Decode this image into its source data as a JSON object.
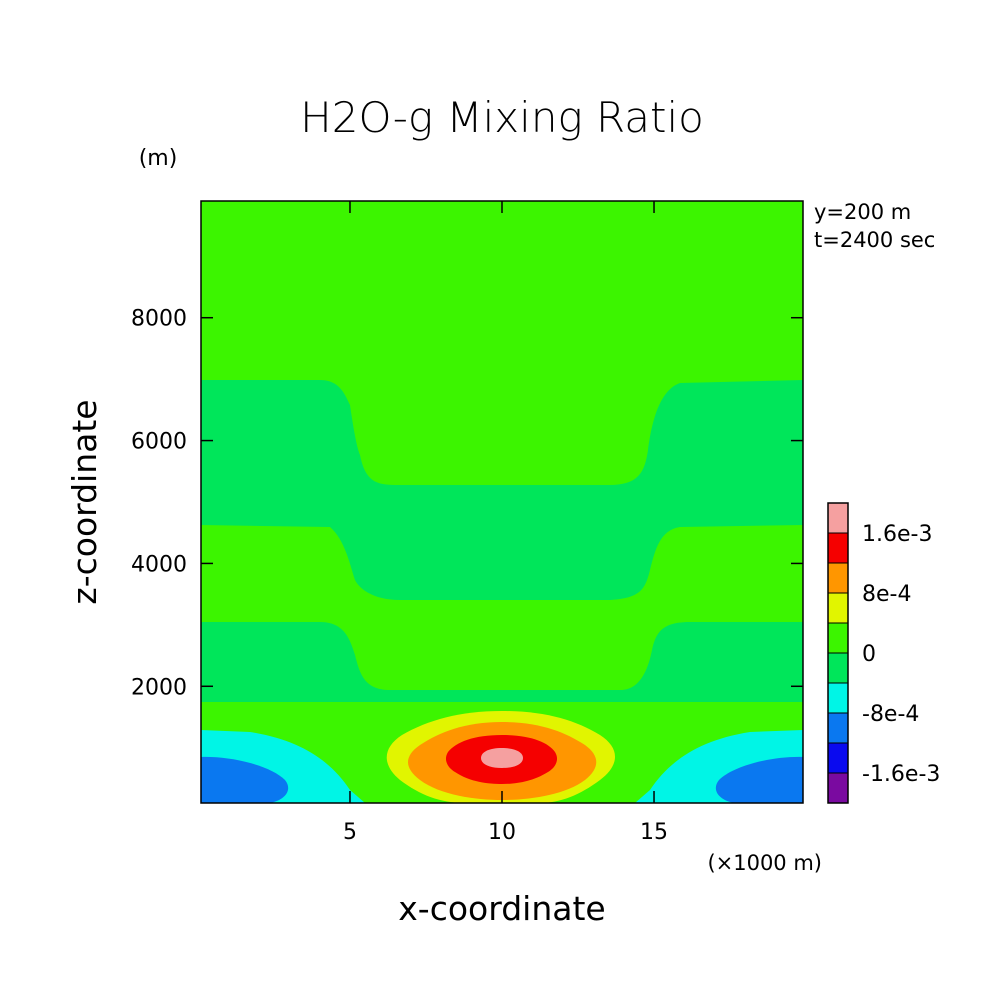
{
  "chart_data": {
    "type": "heatmap",
    "title": "H2O-g Mixing Ratio",
    "xlabel": "x-coordinate",
    "ylabel": "z-coordinate",
    "x_unit": "(×1000 m)",
    "y_unit": "(m)",
    "annotations": [
      "y=200 m",
      "t=2400 sec"
    ],
    "xlim": [
      0.1,
      19.9
    ],
    "ylim": [
      100,
      9900
    ],
    "x_ticks": [
      5,
      10,
      15
    ],
    "y_ticks": [
      2000,
      4000,
      6000,
      8000
    ],
    "legend_position": "right",
    "colorbar": {
      "boundaries": [
        -0.002,
        -0.0016,
        -0.0012,
        -0.0008,
        -0.0004,
        0,
        0.0004,
        0.0008,
        0.0012,
        0.0016,
        0.002
      ],
      "colors": [
        "#7a0aa0",
        "#0a0aef",
        "#0a78f0",
        "#00f5e6",
        "#00e65a",
        "#3cf500",
        "#e1f500",
        "#ff9600",
        "#f50000",
        "#f5a0a0"
      ],
      "tick_labels": [
        {
          "value": 0.0016,
          "label": "1.6e-3"
        },
        {
          "value": 0.0008,
          "label": "8e-4"
        },
        {
          "value": 0,
          "label": "0"
        },
        {
          "value": -0.0008,
          "label": "-8e-4"
        },
        {
          "value": -0.0016,
          "label": "-1.6e-3"
        }
      ]
    },
    "field_description": "Layered background with alternating bands; mixing-ratio peak near x=10 km, z=800 m; negative anomaly lobes near lower-left and lower-right corners."
  }
}
